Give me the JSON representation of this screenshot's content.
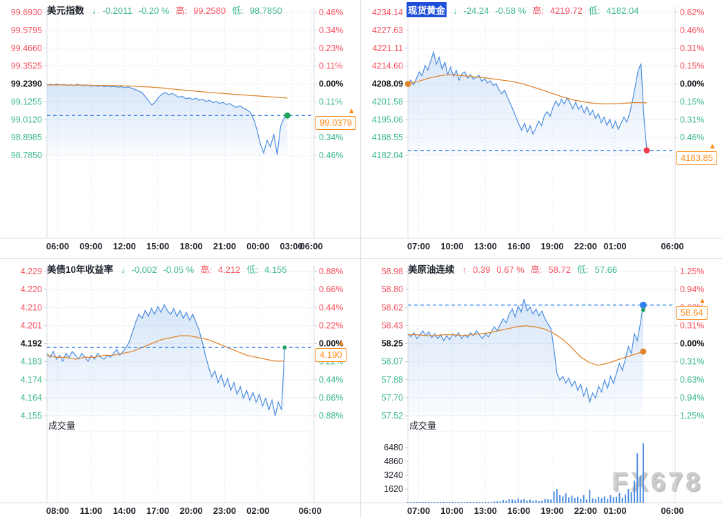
{
  "watermark": "FX678",
  "icons": {
    "price_marker": "▲"
  },
  "colors": {
    "up": "#f5525f",
    "down": "#3db98c",
    "ref_text": "#16181d",
    "line": "#4a8de0",
    "fill": "#4a8de0",
    "ma": "#e0862e",
    "dashed": "#2f80ed",
    "tag": "#ff8d1e",
    "grid_h": "#f0f2f6",
    "grid_v": "#e5e9f0",
    "axis_edge": "#d9dde3",
    "tick_mark": "#c5ccd6",
    "time_text": "#23272f",
    "title_highlight_bg": "#1f4fd8",
    "volume_bar": "#4a8de0"
  },
  "chart_data": [
    {
      "id": "usd-index",
      "type": "line",
      "title": "美元指数",
      "direction": "down",
      "arrow": "↓",
      "change": "-0.2011",
      "change_pct": "-0.20 %",
      "high_label": "高:",
      "high": "99.2580",
      "low_label": "低:",
      "low": "98.7850",
      "title_highlighted": false,
      "left_ticks": [
        "99.6930",
        "99.5795",
        "99.4660",
        "99.3525",
        "99.2390",
        "99.1255",
        "99.0120",
        "98.8985",
        "98.7850"
      ],
      "right_ticks": [
        "0.46%",
        "0.34%",
        "0.23%",
        "0.11%",
        "0.00%",
        "0.11%",
        "0.23%",
        "0.34%",
        "0.46%"
      ],
      "ref_index": 4,
      "axis_max": 99.693,
      "axis_min": 98.785,
      "time_ticks": [
        {
          "label": "06:00",
          "f": 0.04
        },
        {
          "label": "09:00",
          "f": 0.165
        },
        {
          "label": "12:00",
          "f": 0.29
        },
        {
          "label": "15:00",
          "f": 0.415
        },
        {
          "label": "18:00",
          "f": 0.54
        },
        {
          "label": "21:00",
          "f": 0.665
        },
        {
          "label": "00:00",
          "f": 0.79
        },
        {
          "label": "03:00",
          "f": 0.915
        },
        {
          "label": "06:00",
          "f": 0.99
        }
      ],
      "current_price": "99.0379",
      "current_value": 99.0379,
      "volume_label": null,
      "vol_ticks": null,
      "volumes": null,
      "vol_max": null,
      "series": {
        "start_f": 0.0,
        "end_f": 0.9,
        "values": [
          99.23,
          99.236,
          99.233,
          99.238,
          99.232,
          99.235,
          99.229,
          99.234,
          99.23,
          99.236,
          99.231,
          99.228,
          99.233,
          99.226,
          99.23,
          99.224,
          99.228,
          99.222,
          99.226,
          99.22,
          99.224,
          99.218,
          99.222,
          99.215,
          99.22,
          99.212,
          99.205,
          99.195,
          99.185,
          99.16,
          99.13,
          99.105,
          99.125,
          99.155,
          99.175,
          99.185,
          99.17,
          99.18,
          99.165,
          99.155,
          99.16,
          99.145,
          99.15,
          99.14,
          99.148,
          99.135,
          99.142,
          99.128,
          99.135,
          99.12,
          99.128,
          99.115,
          99.122,
          99.108,
          99.115,
          99.1,
          99.09,
          99.1,
          99.085,
          99.075,
          99.06,
          99.02,
          98.95,
          98.86,
          98.8,
          98.88,
          98.84,
          98.92,
          98.79,
          98.97,
          99.02,
          99.038
        ]
      },
      "ma": {
        "start_f": 0.0,
        "end_f": 0.9,
        "values": [
          99.233,
          99.233,
          99.232,
          99.231,
          99.23,
          99.229,
          99.227,
          99.224,
          99.22,
          99.214,
          99.206,
          99.198,
          99.191,
          99.184,
          99.178,
          99.172,
          99.166,
          99.161,
          99.155,
          99.149
        ]
      },
      "dots": [
        {
          "at": "end",
          "color": "#1fa35c",
          "r": 4.5,
          "dy": 0
        }
      ]
    },
    {
      "id": "spot-gold",
      "type": "line",
      "title": "现货黄金",
      "direction": "down",
      "arrow": "↓",
      "change": "-24.24",
      "change_pct": "-0.58 %",
      "high_label": "高:",
      "high": "4219.72",
      "low_label": "低:",
      "low": "4182.04",
      "title_highlighted": true,
      "left_ticks": [
        "4234.14",
        "4227.63",
        "4221.11",
        "4214.60",
        "4208.09",
        "4201.58",
        "4195.06",
        "4188.55",
        "4182.04"
      ],
      "right_ticks": [
        "0.62%",
        "0.46%",
        "0.31%",
        "0.15%",
        "0.00%",
        "0.15%",
        "0.31%",
        "0.46%",
        "0.62%"
      ],
      "ref_index": 4,
      "axis_max": 4234.14,
      "axis_min": 4182.04,
      "time_ticks": [
        {
          "label": "07:00",
          "f": 0.04
        },
        {
          "label": "10:00",
          "f": 0.165
        },
        {
          "label": "13:00",
          "f": 0.29
        },
        {
          "label": "16:00",
          "f": 0.415
        },
        {
          "label": "19:00",
          "f": 0.54
        },
        {
          "label": "22:00",
          "f": 0.665
        },
        {
          "label": "01:00",
          "f": 0.775
        },
        {
          "label": "06:00",
          "f": 0.99
        }
      ],
      "current_price": "4183.85",
      "current_value": 4183.85,
      "volume_label": null,
      "vol_ticks": null,
      "volumes": null,
      "vol_max": null,
      "series": {
        "start_f": 0.0,
        "end_f": 0.894,
        "values": [
          4208.1,
          4209.5,
          4207.8,
          4210.2,
          4212.5,
          4211.0,
          4214.8,
          4213.2,
          4216.5,
          4219.7,
          4215.3,
          4217.8,
          4213.5,
          4216.0,
          4211.5,
          4214.2,
          4210.8,
          4213.0,
          4209.5,
          4211.8,
          4212.5,
          4210.2,
          4211.5,
          4209.8,
          4210.5,
          4211.2,
          4209.0,
          4210.0,
          4208.5,
          4209.2,
          4207.5,
          4208.2,
          4206.0,
          4204.5,
          4205.8,
          4203.2,
          4201.0,
          4198.5,
          4196.0,
          4193.5,
          4191.2,
          4193.8,
          4190.5,
          4192.8,
          4189.8,
          4192.0,
          4194.5,
          4193.0,
          4196.5,
          4198.0,
          4196.2,
          4199.5,
          4201.8,
          4200.0,
          4202.5,
          4200.8,
          4203.0,
          4201.2,
          4199.0,
          4201.5,
          4198.8,
          4200.2,
          4197.5,
          4199.8,
          4196.8,
          4198.5,
          4195.5,
          4197.2,
          4194.0,
          4196.0,
          4193.0,
          4195.2,
          4192.0,
          4194.5,
          4191.5,
          4193.8,
          4196.0,
          4194.2,
          4197.5,
          4202.0,
          4207.5,
          4213.0,
          4215.5,
          4196.0,
          4183.85
        ]
      },
      "ma": {
        "start_f": 0.0,
        "end_f": 0.894,
        "values": [
          4208.1,
          4209.0,
          4210.2,
          4211.0,
          4211.5,
          4211.2,
          4210.8,
          4210.5,
          4210.0,
          4209.5,
          4209.0,
          4208.2,
          4207.0,
          4205.8,
          4204.5,
          4203.2,
          4202.2,
          4201.5,
          4201.0,
          4200.8,
          4200.9,
          4201.1,
          4201.3,
          4201.2
        ]
      },
      "dots": [
        {
          "at": "ma_start",
          "color": "#e0862e",
          "r": 4.5,
          "dy": 0
        },
        {
          "at": "end",
          "color": "#ef4050",
          "r": 4.5,
          "dy": 0
        }
      ]
    },
    {
      "id": "us10y-yield",
      "type": "line",
      "title": "美债10年收益率",
      "direction": "down",
      "arrow": "↓",
      "change": "-0.002",
      "change_pct": "-0.05 %",
      "high_label": "高:",
      "high": "4.212",
      "low_label": "低:",
      "low": "4.155",
      "title_highlighted": false,
      "left_ticks": [
        "4.229",
        "4.220",
        "4.210",
        "4.201",
        "4.192",
        "4.183",
        "4.174",
        "4.164",
        "4.155"
      ],
      "right_ticks": [
        "0.88%",
        "0.66%",
        "0.44%",
        "0.22%",
        "0.00%",
        "0.22%",
        "0.44%",
        "0.66%",
        "0.88%"
      ],
      "ref_index": 4,
      "axis_max": 4.229,
      "axis_min": 4.155,
      "time_ticks": [
        {
          "label": "08:00",
          "f": 0.04
        },
        {
          "label": "11:00",
          "f": 0.165
        },
        {
          "label": "14:00",
          "f": 0.29
        },
        {
          "label": "17:00",
          "f": 0.415
        },
        {
          "label": "20:00",
          "f": 0.54
        },
        {
          "label": "23:00",
          "f": 0.665
        },
        {
          "label": "02:00",
          "f": 0.79
        },
        {
          "label": "06:00",
          "f": 0.985
        }
      ],
      "current_price": "4.190",
      "current_value": 4.19,
      "volume_label": "成交量",
      "vol_ticks": null,
      "volumes": null,
      "vol_max": null,
      "series": {
        "start_f": 0.0,
        "end_f": 0.89,
        "values": [
          4.187,
          4.185,
          4.188,
          4.184,
          4.186,
          4.183,
          4.187,
          4.185,
          4.188,
          4.186,
          4.184,
          4.187,
          4.185,
          4.183,
          4.186,
          4.184,
          4.187,
          4.185,
          4.184,
          4.186,
          4.185,
          4.187,
          4.189,
          4.186,
          4.188,
          4.19,
          4.193,
          4.198,
          4.203,
          4.207,
          4.205,
          4.209,
          4.206,
          4.21,
          4.207,
          4.211,
          4.208,
          4.212,
          4.209,
          4.207,
          4.21,
          4.206,
          4.209,
          4.205,
          4.208,
          4.204,
          4.207,
          4.203,
          4.199,
          4.193,
          4.186,
          4.18,
          4.175,
          4.178,
          4.172,
          4.176,
          4.17,
          4.174,
          4.168,
          4.172,
          4.166,
          4.17,
          4.164,
          4.168,
          4.163,
          4.167,
          4.162,
          4.166,
          4.16,
          4.164,
          4.158,
          4.163,
          4.155,
          4.162,
          4.158,
          4.19
        ]
      },
      "ma": {
        "start_f": 0.0,
        "end_f": 0.89,
        "values": [
          4.186,
          4.185,
          4.185,
          4.184,
          4.185,
          4.185,
          4.186,
          4.186,
          4.187,
          4.188,
          4.19,
          4.192,
          4.194,
          4.195,
          4.196,
          4.196,
          4.195,
          4.194,
          4.192,
          4.19,
          4.188,
          4.186,
          4.185,
          4.184,
          4.183,
          4.183
        ]
      },
      "dots": [
        {
          "at": "end",
          "color": "#1fa35c",
          "r": 3,
          "dy": 0
        }
      ]
    },
    {
      "id": "us-crude-cont",
      "type": "line",
      "title": "美原油连续",
      "direction": "up",
      "arrow": "↑",
      "change": "0.39",
      "change_pct": "0.67 %",
      "high_label": "高:",
      "high": "58.72",
      "low_label": "低:",
      "low": "57.66",
      "title_highlighted": false,
      "left_ticks": [
        "58.98",
        "58.80",
        "58.62",
        "58.43",
        "58.25",
        "58.07",
        "57.88",
        "57.70",
        "57.52"
      ],
      "right_ticks": [
        "1.25%",
        "0.94%",
        "0.63%",
        "0.31%",
        "0.00%",
        "0.31%",
        "0.63%",
        "0.94%",
        "1.25%"
      ],
      "ref_index": 4,
      "axis_max": 58.98,
      "axis_min": 57.52,
      "time_ticks": [
        {
          "label": "07:00",
          "f": 0.04
        },
        {
          "label": "10:00",
          "f": 0.165
        },
        {
          "label": "13:00",
          "f": 0.29
        },
        {
          "label": "16:00",
          "f": 0.415
        },
        {
          "label": "19:00",
          "f": 0.54
        },
        {
          "label": "22:00",
          "f": 0.665
        },
        {
          "label": "01:00",
          "f": 0.775
        },
        {
          "label": "06:00",
          "f": 0.99
        }
      ],
      "current_price": "58.64",
      "current_value": 58.64,
      "volume_label": "成交量",
      "vol_ticks": [
        {
          "label": "6480",
          "v": 6480
        },
        {
          "label": "4860",
          "v": 4860
        },
        {
          "label": "3240",
          "v": 3240
        },
        {
          "label": "1620",
          "v": 1620
        }
      ],
      "vol_max": 8100,
      "volumes": [
        40,
        25,
        60,
        30,
        45,
        20,
        55,
        35,
        28,
        50,
        22,
        48,
        30,
        65,
        40,
        25,
        58,
        32,
        45,
        70,
        35,
        35,
        42,
        60,
        38,
        30,
        55,
        45,
        80,
        150,
        220,
        180,
        320,
        260,
        420,
        380,
        300,
        520,
        340,
        460,
        280,
        360,
        240,
        300,
        200,
        260,
        480,
        420,
        380,
        1350,
        1600,
        900,
        750,
        1100,
        620,
        840,
        560,
        720,
        480,
        900,
        380,
        1500,
        520,
        440,
        680,
        560,
        760,
        480,
        880,
        640,
        720,
        1150,
        580,
        980,
        1600,
        1250,
        2600,
        5800,
        3200,
        7000
      ],
      "series": {
        "start_f": 0.0,
        "end_f": 0.881,
        "values": [
          58.35,
          58.32,
          58.36,
          58.3,
          58.34,
          58.38,
          58.33,
          58.37,
          58.31,
          58.35,
          58.3,
          58.34,
          58.28,
          58.33,
          58.29,
          58.35,
          58.32,
          58.36,
          58.3,
          58.34,
          58.31,
          58.36,
          58.33,
          58.38,
          58.34,
          58.3,
          58.35,
          58.32,
          58.37,
          58.42,
          58.38,
          58.45,
          58.5,
          58.46,
          58.55,
          58.6,
          58.52,
          58.63,
          58.57,
          58.7,
          58.58,
          58.62,
          58.55,
          58.6,
          58.53,
          58.58,
          58.5,
          58.45,
          58.4,
          58.2,
          57.95,
          57.88,
          57.92,
          57.85,
          57.9,
          57.82,
          57.87,
          57.78,
          57.84,
          57.72,
          57.8,
          57.66,
          57.75,
          57.7,
          57.82,
          57.76,
          57.88,
          57.8,
          57.92,
          57.85,
          57.95,
          58.05,
          57.98,
          58.1,
          58.22,
          58.15,
          58.35,
          58.28,
          58.45,
          58.64
        ]
      },
      "ma": {
        "start_f": 0.0,
        "end_f": 0.881,
        "values": [
          58.34,
          58.34,
          58.33,
          58.33,
          58.34,
          58.34,
          58.33,
          58.34,
          58.35,
          58.36,
          58.38,
          58.4,
          58.42,
          58.43,
          58.42,
          58.4,
          58.36,
          58.3,
          58.22,
          58.12,
          58.06,
          58.03,
          58.05,
          58.08,
          58.11,
          58.14,
          58.17
        ]
      },
      "dots": [
        {
          "at": "end",
          "color": "#2f80ed",
          "r": 5,
          "dy": 0
        },
        {
          "at": "end",
          "color": "#1fa35c",
          "r": 3,
          "dy": 7
        },
        {
          "at": "ma_end",
          "color": "#e0862e",
          "r": 4.5,
          "dy": 0
        }
      ]
    }
  ]
}
